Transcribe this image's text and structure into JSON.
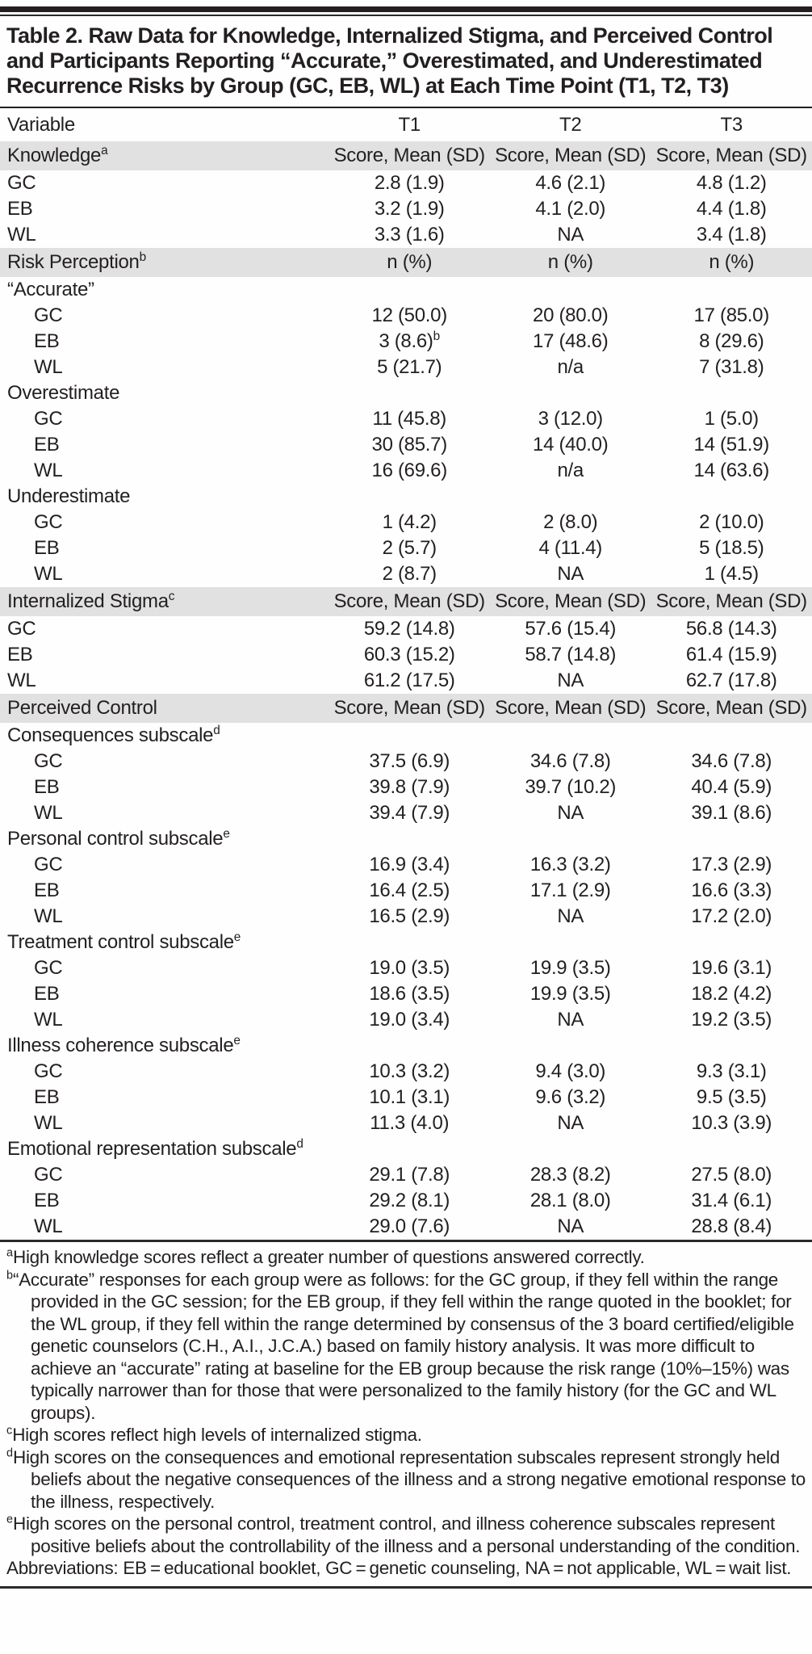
{
  "table": {
    "title": "Table 2. Raw Data for Knowledge, Internalized Stigma, and Perceived Control and Participants Reporting “Accurate,” Overestimated, and Underestimated Recurrence Risks by Group (GC, EB, WL) at Each Time Point (T1, T2, T3)",
    "columns": [
      "Variable",
      "T1",
      "T2",
      "T3"
    ],
    "rows": [
      {
        "type": "section",
        "label": "Knowledge^a",
        "values": [
          "Score, Mean (SD)",
          "Score, Mean (SD)",
          "Score, Mean (SD)"
        ]
      },
      {
        "type": "data",
        "label": "GC",
        "values": [
          "2.8 (1.9)",
          "4.6 (2.1)",
          "4.8 (1.2)"
        ]
      },
      {
        "type": "data",
        "label": "EB",
        "values": [
          "3.2 (1.9)",
          "4.1 (2.0)",
          "4.4 (1.8)"
        ]
      },
      {
        "type": "data",
        "label": "WL",
        "values": [
          "3.3 (1.6)",
          "NA",
          "3.4 (1.8)"
        ]
      },
      {
        "type": "section",
        "label": "Risk Perception^b",
        "values": [
          "n (%)",
          "n (%)",
          "n (%)"
        ]
      },
      {
        "type": "subhead",
        "label": "“Accurate”",
        "values": [
          "",
          "",
          ""
        ]
      },
      {
        "type": "data-indent",
        "label": "GC",
        "values": [
          "12 (50.0)",
          "20 (80.0)",
          "17 (85.0)"
        ]
      },
      {
        "type": "data-indent",
        "label": "EB",
        "values": [
          "3 (8.6)^b",
          "17 (48.6)",
          "8 (29.6)"
        ]
      },
      {
        "type": "data-indent",
        "label": "WL",
        "values": [
          "5 (21.7)",
          "n/a",
          "7 (31.8)"
        ]
      },
      {
        "type": "subhead",
        "label": "Overestimate",
        "values": [
          "",
          "",
          ""
        ]
      },
      {
        "type": "data-indent",
        "label": "GC",
        "values": [
          "11 (45.8)",
          "3 (12.0)",
          "1 (5.0)"
        ]
      },
      {
        "type": "data-indent",
        "label": "EB",
        "values": [
          "30 (85.7)",
          "14 (40.0)",
          "14 (51.9)"
        ]
      },
      {
        "type": "data-indent",
        "label": "WL",
        "values": [
          "16 (69.6)",
          "n/a",
          "14 (63.6)"
        ]
      },
      {
        "type": "subhead",
        "label": "Underestimate",
        "values": [
          "",
          "",
          ""
        ]
      },
      {
        "type": "data-indent",
        "label": "GC",
        "values": [
          "1 (4.2)",
          "2 (8.0)",
          "2 (10.0)"
        ]
      },
      {
        "type": "data-indent",
        "label": "EB",
        "values": [
          "2 (5.7)",
          "4 (11.4)",
          "5 (18.5)"
        ]
      },
      {
        "type": "data-indent",
        "label": "WL",
        "values": [
          "2 (8.7)",
          "NA",
          "1 (4.5)"
        ]
      },
      {
        "type": "section",
        "label": "Internalized Stigma^c",
        "values": [
          "Score, Mean (SD)",
          "Score, Mean (SD)",
          "Score, Mean (SD)"
        ]
      },
      {
        "type": "data",
        "label": "GC",
        "values": [
          "59.2 (14.8)",
          "57.6 (15.4)",
          "56.8 (14.3)"
        ]
      },
      {
        "type": "data",
        "label": "EB",
        "values": [
          "60.3 (15.2)",
          "58.7 (14.8)",
          "61.4 (15.9)"
        ]
      },
      {
        "type": "data",
        "label": "WL",
        "values": [
          "61.2 (17.5)",
          "NA",
          "62.7 (17.8)"
        ]
      },
      {
        "type": "section",
        "label": "Perceived Control",
        "values": [
          "Score, Mean (SD)",
          "Score, Mean (SD)",
          "Score, Mean (SD)"
        ]
      },
      {
        "type": "subhead",
        "label": "Consequences subscale^d",
        "values": [
          "",
          "",
          ""
        ]
      },
      {
        "type": "data-indent",
        "label": "GC",
        "values": [
          "37.5 (6.9)",
          "34.6 (7.8)",
          "34.6 (7.8)"
        ]
      },
      {
        "type": "data-indent",
        "label": "EB",
        "values": [
          "39.8 (7.9)",
          "39.7 (10.2)",
          "40.4 (5.9)"
        ]
      },
      {
        "type": "data-indent",
        "label": "WL",
        "values": [
          "39.4 (7.9)",
          "NA",
          "39.1 (8.6)"
        ]
      },
      {
        "type": "subhead",
        "label": "Personal control subscale^e",
        "values": [
          "",
          "",
          ""
        ]
      },
      {
        "type": "data-indent",
        "label": "GC",
        "values": [
          "16.9 (3.4)",
          "16.3 (3.2)",
          "17.3 (2.9)"
        ]
      },
      {
        "type": "data-indent",
        "label": "EB",
        "values": [
          "16.4 (2.5)",
          "17.1 (2.9)",
          "16.6 (3.3)"
        ]
      },
      {
        "type": "data-indent",
        "label": "WL",
        "values": [
          "16.5 (2.9)",
          "NA",
          "17.2 (2.0)"
        ]
      },
      {
        "type": "subhead",
        "label": "Treatment control subscale^e",
        "values": [
          "",
          "",
          ""
        ]
      },
      {
        "type": "data-indent",
        "label": "GC",
        "values": [
          "19.0 (3.5)",
          "19.9 (3.5)",
          "19.6 (3.1)"
        ]
      },
      {
        "type": "data-indent",
        "label": "EB",
        "values": [
          "18.6 (3.5)",
          "19.9 (3.5)",
          "18.2 (4.2)"
        ]
      },
      {
        "type": "data-indent",
        "label": "WL",
        "values": [
          "19.0 (3.4)",
          "NA",
          "19.2 (3.5)"
        ]
      },
      {
        "type": "subhead",
        "label": "Illness coherence subscale^e",
        "values": [
          "",
          "",
          ""
        ]
      },
      {
        "type": "data-indent",
        "label": "GC",
        "values": [
          "10.3 (3.2)",
          "9.4 (3.0)",
          "9.3 (3.1)"
        ]
      },
      {
        "type": "data-indent",
        "label": "EB",
        "values": [
          "10.1 (3.1)",
          "9.6 (3.2)",
          "9.5 (3.5)"
        ]
      },
      {
        "type": "data-indent",
        "label": "WL",
        "values": [
          "11.3 (4.0)",
          "NA",
          "10.3 (3.9)"
        ]
      },
      {
        "type": "subhead",
        "label": "Emotional representation subscale^d",
        "values": [
          "",
          "",
          ""
        ]
      },
      {
        "type": "data-indent",
        "label": "GC",
        "values": [
          "29.1 (7.8)",
          "28.3 (8.2)",
          "27.5 (8.0)"
        ]
      },
      {
        "type": "data-indent",
        "label": "EB",
        "values": [
          "29.2 (8.1)",
          "28.1 (8.0)",
          "31.4 (6.1)"
        ]
      },
      {
        "type": "data-indent",
        "label": "WL",
        "values": [
          "29.0 (7.6)",
          "NA",
          "28.8 (8.4)"
        ]
      }
    ],
    "footnotes": [
      {
        "sup": "a",
        "text": "High knowledge scores reflect a greater number of questions answered correctly."
      },
      {
        "sup": "b",
        "text": "“Accurate” responses for each group were as follows: for the GC group, if they fell within the range provided in the GC session; for the EB group, if they fell within the range quoted in the booklet; for the WL group, if they fell within the range determined by consensus of the 3 board certified/eligible genetic counselors (C.H., A.I., J.C.A.) based on family history analysis. It was more difficult to achieve an “accurate” rating at baseline for the EB group because the risk range (10%–15%) was typically narrower than for those that were personalized to the family history (for the GC and WL groups)."
      },
      {
        "sup": "c",
        "text": "High scores reflect high levels of internalized stigma."
      },
      {
        "sup": "d",
        "text": "High scores on the consequences and emotional representation subscales represent strongly held beliefs about the negative consequences of the illness and a strong negative emotional response to the illness, respectively."
      },
      {
        "sup": "e",
        "text": "High scores on the personal control, treatment control, and illness coherence subscales represent positive beliefs about the controllability of the illness and a personal understanding of the condition."
      },
      {
        "sup": "",
        "text": "Abbreviations: EB = educational booklet, GC = genetic counseling, NA = not applicable, WL = wait list."
      }
    ],
    "colors": {
      "shaded_row": "#e1e1e1",
      "text": "#231f20",
      "rule": "#231f20"
    }
  }
}
